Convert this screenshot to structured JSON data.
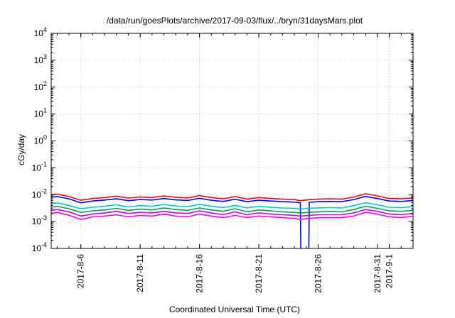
{
  "chart_data": {
    "type": "line",
    "title": "/data/run/goesPlots/archive/2017-09-03/flux/../bryn/31daysMars.plot",
    "xlabel": "Coordinated Universal Time (UTC)",
    "ylabel": "cGy/day",
    "yscale": "log",
    "ylim": [
      0.0001,
      10000
    ],
    "yticks": [
      {
        "base": "10",
        "exp": "4",
        "value": 10000
      },
      {
        "base": "10",
        "exp": "3",
        "value": 1000
      },
      {
        "base": "10",
        "exp": "2",
        "value": 100
      },
      {
        "base": "10",
        "exp": "1",
        "value": 10
      },
      {
        "base": "10",
        "exp": "0",
        "value": 1
      },
      {
        "base": "10",
        "exp": "-1",
        "value": 0.1
      },
      {
        "base": "10",
        "exp": "-2",
        "value": 0.01
      },
      {
        "base": "10",
        "exp": "-3",
        "value": 0.001
      },
      {
        "base": "10",
        "exp": "-4",
        "value": 0.0001
      }
    ],
    "xlim": [
      "2017-08-03T12:00",
      "2017-09-03T00:00"
    ],
    "xticks": [
      {
        "label": "2017-8-6",
        "date": "2017-08-06"
      },
      {
        "label": "2017-8-11",
        "date": "2017-08-11"
      },
      {
        "label": "2017-8-16",
        "date": "2017-08-16"
      },
      {
        "label": "2017-8-21",
        "date": "2017-08-21"
      },
      {
        "label": "2017-8-26",
        "date": "2017-08-26"
      },
      {
        "label": "2017-8-31",
        "date": "2017-08-31"
      },
      {
        "label": "2017-9-1",
        "date": "2017-09-01"
      }
    ],
    "grid": true,
    "series": [
      {
        "color": "#ff0000",
        "values": [
          [
            "2017-08-03T12:00",
            0.0098
          ],
          [
            "2017-08-04",
            0.0105
          ],
          [
            "2017-08-05",
            0.0085
          ],
          [
            "2017-08-06",
            0.0062
          ],
          [
            "2017-08-07",
            0.0072
          ],
          [
            "2017-08-08",
            0.0078
          ],
          [
            "2017-08-09",
            0.0088
          ],
          [
            "2017-08-10",
            0.0075
          ],
          [
            "2017-08-11",
            0.0082
          ],
          [
            "2017-08-12",
            0.0078
          ],
          [
            "2017-08-13",
            0.009
          ],
          [
            "2017-08-14",
            0.008
          ],
          [
            "2017-08-15",
            0.0076
          ],
          [
            "2017-08-16",
            0.0092
          ],
          [
            "2017-08-17",
            0.0078
          ],
          [
            "2017-08-18",
            0.007
          ],
          [
            "2017-08-19",
            0.0085
          ],
          [
            "2017-08-20",
            0.0068
          ],
          [
            "2017-08-21",
            0.0078
          ],
          [
            "2017-08-22",
            0.0072
          ],
          [
            "2017-08-23",
            0.0068
          ],
          [
            "2017-08-24",
            0.0066
          ],
          [
            "2017-08-24T12:00",
            0.006
          ],
          [
            "2017-08-25T06:00",
            0.0065
          ],
          [
            "2017-08-26",
            0.0068
          ],
          [
            "2017-08-27",
            0.007
          ],
          [
            "2017-08-28",
            0.0068
          ],
          [
            "2017-08-29",
            0.0082
          ],
          [
            "2017-08-30",
            0.0108
          ],
          [
            "2017-08-31",
            0.009
          ],
          [
            "2017-09-01",
            0.0072
          ],
          [
            "2017-09-02",
            0.007
          ],
          [
            "2017-09-03",
            0.0076
          ]
        ]
      },
      {
        "color": "#0000ff",
        "values": [
          [
            "2017-08-03T12:00",
            0.008
          ],
          [
            "2017-08-04",
            0.0085
          ],
          [
            "2017-08-05",
            0.007
          ],
          [
            "2017-08-06",
            0.005
          ],
          [
            "2017-08-07",
            0.0058
          ],
          [
            "2017-08-08",
            0.0063
          ],
          [
            "2017-08-09",
            0.007
          ],
          [
            "2017-08-10",
            0.006
          ],
          [
            "2017-08-11",
            0.0066
          ],
          [
            "2017-08-12",
            0.0063
          ],
          [
            "2017-08-13",
            0.0072
          ],
          [
            "2017-08-14",
            0.0064
          ],
          [
            "2017-08-15",
            0.0061
          ],
          [
            "2017-08-16",
            0.0073
          ],
          [
            "2017-08-17",
            0.0062
          ],
          [
            "2017-08-18",
            0.0056
          ],
          [
            "2017-08-19",
            0.0068
          ],
          [
            "2017-08-20",
            0.0055
          ],
          [
            "2017-08-21",
            0.0062
          ],
          [
            "2017-08-22",
            0.0058
          ],
          [
            "2017-08-23",
            0.0055
          ],
          [
            "2017-08-24",
            0.0053
          ],
          [
            "2017-08-24T12:00",
            0.005
          ],
          [
            "2017-08-24T13:00",
            5e-05
          ],
          [
            "2017-08-25T05:00",
            5e-05
          ],
          [
            "2017-08-25T06:00",
            0.0052
          ],
          [
            "2017-08-26",
            0.0055
          ],
          [
            "2017-08-27",
            0.0056
          ],
          [
            "2017-08-28",
            0.0055
          ],
          [
            "2017-08-29",
            0.0066
          ],
          [
            "2017-08-30",
            0.0086
          ],
          [
            "2017-08-31",
            0.0072
          ],
          [
            "2017-09-01",
            0.0058
          ],
          [
            "2017-09-02",
            0.0056
          ],
          [
            "2017-09-03",
            0.0061
          ]
        ]
      },
      {
        "color": "#00c8c8",
        "values": [
          [
            "2017-08-03T12:00",
            0.0046
          ],
          [
            "2017-08-04",
            0.005
          ],
          [
            "2017-08-05",
            0.004
          ],
          [
            "2017-08-06",
            0.003
          ],
          [
            "2017-08-07",
            0.0034
          ],
          [
            "2017-08-08",
            0.0037
          ],
          [
            "2017-08-09",
            0.0042
          ],
          [
            "2017-08-10",
            0.0035
          ],
          [
            "2017-08-11",
            0.0039
          ],
          [
            "2017-08-12",
            0.0037
          ],
          [
            "2017-08-13",
            0.0043
          ],
          [
            "2017-08-14",
            0.0038
          ],
          [
            "2017-08-15",
            0.0036
          ],
          [
            "2017-08-16",
            0.0044
          ],
          [
            "2017-08-17",
            0.0037
          ],
          [
            "2017-08-18",
            0.0033
          ],
          [
            "2017-08-19",
            0.004
          ],
          [
            "2017-08-20",
            0.0032
          ],
          [
            "2017-08-21",
            0.0037
          ],
          [
            "2017-08-22",
            0.0034
          ],
          [
            "2017-08-23",
            0.0032
          ],
          [
            "2017-08-24",
            0.0031
          ],
          [
            "2017-08-24T12:00",
            0.0029
          ],
          [
            "2017-08-25T06:00",
            0.0031
          ],
          [
            "2017-08-26",
            0.0032
          ],
          [
            "2017-08-27",
            0.0033
          ],
          [
            "2017-08-28",
            0.0032
          ],
          [
            "2017-08-29",
            0.0039
          ],
          [
            "2017-08-30",
            0.005
          ],
          [
            "2017-08-31",
            0.0042
          ],
          [
            "2017-09-01",
            0.0034
          ],
          [
            "2017-09-02",
            0.0033
          ],
          [
            "2017-09-03",
            0.0036
          ]
        ]
      },
      {
        "color": "#00a050",
        "values": [
          [
            "2017-08-03T12:00",
            0.0034
          ],
          [
            "2017-08-04",
            0.0037
          ],
          [
            "2017-08-05",
            0.003
          ],
          [
            "2017-08-06",
            0.0022
          ],
          [
            "2017-08-07",
            0.0025
          ],
          [
            "2017-08-08",
            0.0027
          ],
          [
            "2017-08-09",
            0.0031
          ],
          [
            "2017-08-10",
            0.0026
          ],
          [
            "2017-08-11",
            0.0029
          ],
          [
            "2017-08-12",
            0.0027
          ],
          [
            "2017-08-13",
            0.0032
          ],
          [
            "2017-08-14",
            0.0028
          ],
          [
            "2017-08-15",
            0.0026
          ],
          [
            "2017-08-16",
            0.0032
          ],
          [
            "2017-08-17",
            0.0027
          ],
          [
            "2017-08-18",
            0.0024
          ],
          [
            "2017-08-19",
            0.003
          ],
          [
            "2017-08-20",
            0.0023
          ],
          [
            "2017-08-21",
            0.0027
          ],
          [
            "2017-08-22",
            0.0025
          ],
          [
            "2017-08-23",
            0.0023
          ],
          [
            "2017-08-24",
            0.0022
          ],
          [
            "2017-08-24T12:00",
            0.0021
          ],
          [
            "2017-08-25T06:00",
            0.0022
          ],
          [
            "2017-08-26",
            0.0023
          ],
          [
            "2017-08-27",
            0.0024
          ],
          [
            "2017-08-28",
            0.0023
          ],
          [
            "2017-08-29",
            0.0028
          ],
          [
            "2017-08-30",
            0.0037
          ],
          [
            "2017-08-31",
            0.0031
          ],
          [
            "2017-09-01",
            0.0025
          ],
          [
            "2017-09-02",
            0.0024
          ],
          [
            "2017-09-03",
            0.0026
          ]
        ]
      },
      {
        "color": "#c000ff",
        "values": [
          [
            "2017-08-03T12:00",
            0.0026
          ],
          [
            "2017-08-04",
            0.0028
          ],
          [
            "2017-08-05",
            0.0023
          ],
          [
            "2017-08-06",
            0.0016
          ],
          [
            "2017-08-07",
            0.0019
          ],
          [
            "2017-08-08",
            0.0021
          ],
          [
            "2017-08-09",
            0.0024
          ],
          [
            "2017-08-10",
            0.002
          ],
          [
            "2017-08-11",
            0.0022
          ],
          [
            "2017-08-12",
            0.0021
          ],
          [
            "2017-08-13",
            0.0024
          ],
          [
            "2017-08-14",
            0.0021
          ],
          [
            "2017-08-15",
            0.002
          ],
          [
            "2017-08-16",
            0.0025
          ],
          [
            "2017-08-17",
            0.0021
          ],
          [
            "2017-08-18",
            0.0018
          ],
          [
            "2017-08-19",
            0.0023
          ],
          [
            "2017-08-20",
            0.0018
          ],
          [
            "2017-08-21",
            0.0021
          ],
          [
            "2017-08-22",
            0.0019
          ],
          [
            "2017-08-23",
            0.0018
          ],
          [
            "2017-08-24",
            0.0017
          ],
          [
            "2017-08-24T12:00",
            0.0016
          ],
          [
            "2017-08-25T06:00",
            0.0017
          ],
          [
            "2017-08-26",
            0.0018
          ],
          [
            "2017-08-27",
            0.0018
          ],
          [
            "2017-08-28",
            0.0018
          ],
          [
            "2017-08-29",
            0.0021
          ],
          [
            "2017-08-30",
            0.0028
          ],
          [
            "2017-08-31",
            0.0024
          ],
          [
            "2017-09-01",
            0.0019
          ],
          [
            "2017-09-02",
            0.0018
          ],
          [
            "2017-09-03",
            0.002
          ]
        ]
      },
      {
        "color": "#ff00ff",
        "values": [
          [
            "2017-08-03T12:00",
            0.002
          ],
          [
            "2017-08-04",
            0.0022
          ],
          [
            "2017-08-05",
            0.0017
          ],
          [
            "2017-08-06",
            0.0012
          ],
          [
            "2017-08-07",
            0.0015
          ],
          [
            "2017-08-08",
            0.0016
          ],
          [
            "2017-08-09",
            0.0018
          ],
          [
            "2017-08-10",
            0.0015
          ],
          [
            "2017-08-11",
            0.0017
          ],
          [
            "2017-08-12",
            0.0016
          ],
          [
            "2017-08-13",
            0.0019
          ],
          [
            "2017-08-14",
            0.0016
          ],
          [
            "2017-08-15",
            0.0015
          ],
          [
            "2017-08-16",
            0.0019
          ],
          [
            "2017-08-17",
            0.0016
          ],
          [
            "2017-08-18",
            0.0014
          ],
          [
            "2017-08-19",
            0.0017
          ],
          [
            "2017-08-20",
            0.0014
          ],
          [
            "2017-08-21",
            0.0016
          ],
          [
            "2017-08-22",
            0.0015
          ],
          [
            "2017-08-23",
            0.0014
          ],
          [
            "2017-08-24",
            0.0013
          ],
          [
            "2017-08-24T12:00",
            0.0012
          ],
          [
            "2017-08-25T06:00",
            0.0013
          ],
          [
            "2017-08-26",
            0.0014
          ],
          [
            "2017-08-27",
            0.0014
          ],
          [
            "2017-08-28",
            0.0014
          ],
          [
            "2017-08-29",
            0.0016
          ],
          [
            "2017-08-30",
            0.0022
          ],
          [
            "2017-08-31",
            0.0019
          ],
          [
            "2017-09-01",
            0.0015
          ],
          [
            "2017-09-02",
            0.0014
          ],
          [
            "2017-09-03",
            0.0016
          ]
        ]
      }
    ]
  }
}
